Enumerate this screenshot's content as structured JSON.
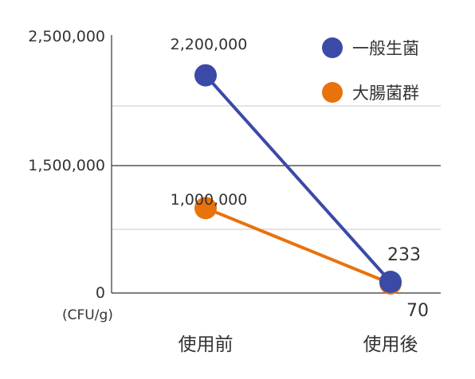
{
  "chart_data": {
    "type": "line",
    "categories": [
      "使用前",
      "使用後"
    ],
    "y_tick_labels": [
      "2,500,000",
      "1,500,000",
      "0"
    ],
    "unit_label": "(CFU/g)",
    "series": [
      {
        "name": "一般生菌",
        "color": "#3a4aa6",
        "values": [
          2200000,
          233
        ],
        "labels": [
          "2,200,000",
          "233"
        ],
        "label_colors": [
          "#333333",
          "#e5197a"
        ]
      },
      {
        "name": "大腸菌群",
        "color": "#e8720c",
        "values": [
          1000000,
          70
        ],
        "labels": [
          "1,000,000",
          "70"
        ],
        "label_colors": [
          "#333333",
          "#e5197a"
        ]
      }
    ],
    "legend": "top-right",
    "grid": true
  }
}
